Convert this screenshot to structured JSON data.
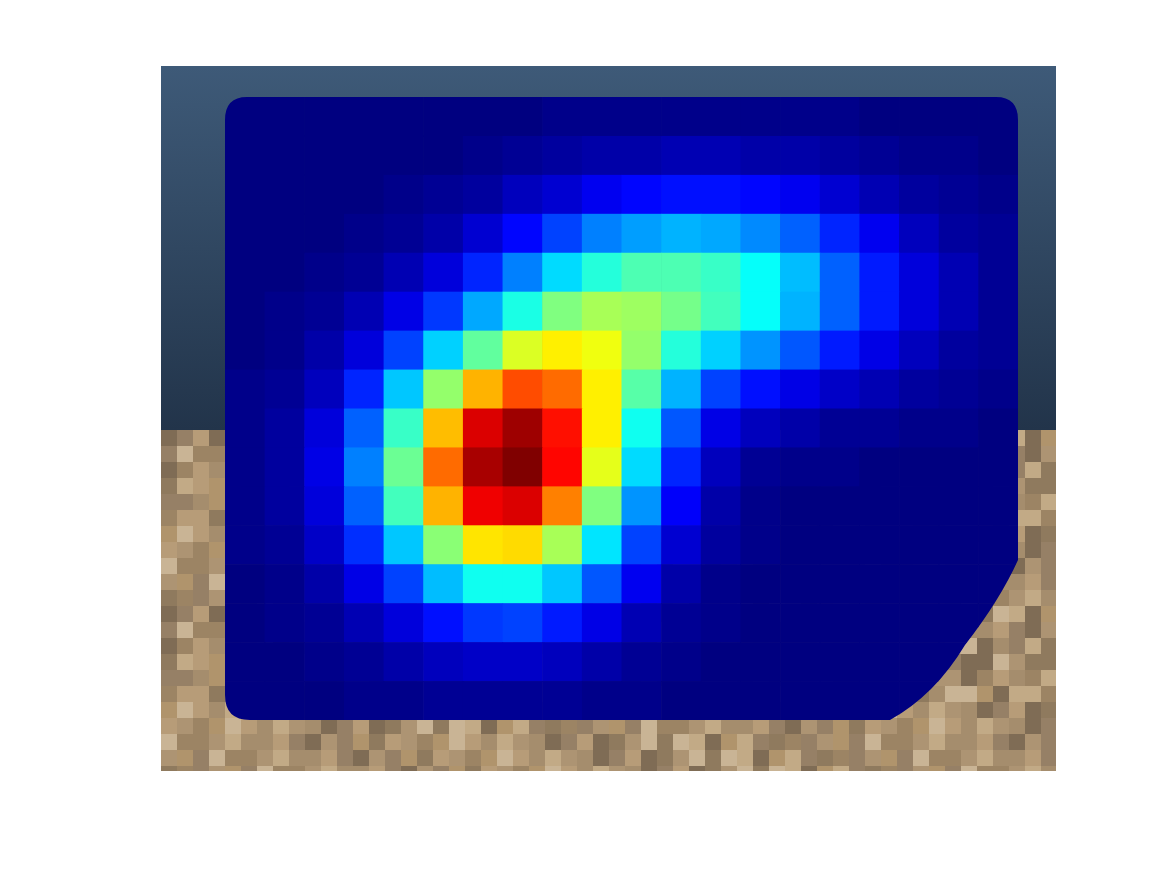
{
  "chart_data": {
    "type": "heatmap",
    "tick_labels": false,
    "color_range": [
      0,
      1
    ],
    "cells": [
      [
        0,
        0,
        0,
        0,
        0,
        0,
        0,
        0,
        0.01,
        0.01,
        0.01,
        0.01,
        0.01,
        0.01,
        0.01,
        0.01,
        0,
        0,
        0,
        0
      ],
      [
        0,
        0,
        0,
        0,
        0,
        0,
        0.01,
        0.02,
        0.03,
        0.04,
        0.04,
        0.05,
        0.05,
        0.04,
        0.04,
        0.03,
        0.02,
        0.01,
        0.01,
        0
      ],
      [
        0,
        0,
        0,
        0,
        0.01,
        0.02,
        0.03,
        0.06,
        0.08,
        0.11,
        0.13,
        0.14,
        0.14,
        0.13,
        0.11,
        0.08,
        0.05,
        0.03,
        0.02,
        0.01
      ],
      [
        0,
        0,
        0,
        0.01,
        0.02,
        0.04,
        0.08,
        0.13,
        0.19,
        0.25,
        0.28,
        0.3,
        0.29,
        0.26,
        0.22,
        0.16,
        0.11,
        0.06,
        0.03,
        0.02
      ],
      [
        0,
        0,
        0.01,
        0.02,
        0.05,
        0.09,
        0.16,
        0.25,
        0.34,
        0.41,
        0.45,
        0.45,
        0.43,
        0.38,
        0.31,
        0.22,
        0.15,
        0.09,
        0.05,
        0.02
      ],
      [
        0,
        0.01,
        0.02,
        0.05,
        0.1,
        0.18,
        0.29,
        0.4,
        0.5,
        0.54,
        0.53,
        0.49,
        0.44,
        0.38,
        0.3,
        0.22,
        0.15,
        0.09,
        0.05,
        0.02
      ],
      [
        0,
        0.01,
        0.04,
        0.09,
        0.19,
        0.33,
        0.47,
        0.59,
        0.64,
        0.61,
        0.52,
        0.41,
        0.33,
        0.27,
        0.21,
        0.15,
        0.1,
        0.06,
        0.03,
        0.02
      ],
      [
        0.01,
        0.02,
        0.06,
        0.16,
        0.32,
        0.52,
        0.7,
        0.8,
        0.77,
        0.64,
        0.46,
        0.3,
        0.19,
        0.14,
        0.1,
        0.07,
        0.05,
        0.03,
        0.02,
        0.01
      ],
      [
        0.01,
        0.03,
        0.09,
        0.22,
        0.43,
        0.69,
        0.91,
        0.97,
        0.86,
        0.64,
        0.39,
        0.21,
        0.1,
        0.06,
        0.04,
        0.02,
        0.02,
        0.01,
        0.01,
        0
      ],
      [
        0.01,
        0.03,
        0.1,
        0.25,
        0.48,
        0.77,
        0.96,
        1.0,
        0.87,
        0.6,
        0.34,
        0.16,
        0.06,
        0.02,
        0.01,
        0.01,
        0,
        0,
        0,
        0
      ],
      [
        0.01,
        0.03,
        0.09,
        0.22,
        0.44,
        0.7,
        0.89,
        0.91,
        0.75,
        0.5,
        0.27,
        0.12,
        0.04,
        0.01,
        0,
        0,
        0,
        0,
        0,
        0
      ],
      [
        0.01,
        0.02,
        0.07,
        0.17,
        0.32,
        0.51,
        0.65,
        0.66,
        0.54,
        0.35,
        0.19,
        0.08,
        0.03,
        0.01,
        0,
        0,
        0,
        0,
        0,
        0
      ],
      [
        0,
        0.01,
        0.04,
        0.1,
        0.19,
        0.31,
        0.39,
        0.39,
        0.32,
        0.21,
        0.11,
        0.04,
        0.01,
        0,
        0,
        0,
        0,
        0,
        0,
        0
      ],
      [
        0,
        0.01,
        0.02,
        0.05,
        0.09,
        0.14,
        0.18,
        0.19,
        0.15,
        0.1,
        0.05,
        0.02,
        0.01,
        0,
        0,
        0,
        0,
        0,
        0,
        0
      ],
      [
        0,
        0,
        0.01,
        0.02,
        0.04,
        0.06,
        0.07,
        0.07,
        0.06,
        0.04,
        0.02,
        0.01,
        0,
        0,
        0,
        0,
        0,
        0,
        0,
        0
      ],
      [
        0,
        0,
        0,
        0.01,
        0.01,
        0.02,
        0.02,
        0.02,
        0.02,
        0.01,
        0.01,
        0,
        0,
        0,
        0,
        0,
        0,
        0,
        0,
        0
      ]
    ]
  }
}
